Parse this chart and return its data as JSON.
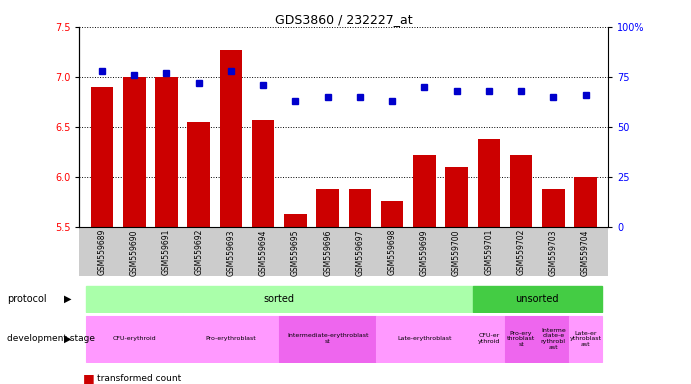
{
  "title": "GDS3860 / 232227_at",
  "samples": [
    "GSM559689",
    "GSM559690",
    "GSM559691",
    "GSM559692",
    "GSM559693",
    "GSM559694",
    "GSM559695",
    "GSM559696",
    "GSM559697",
    "GSM559698",
    "GSM559699",
    "GSM559700",
    "GSM559701",
    "GSM559702",
    "GSM559703",
    "GSM559704"
  ],
  "bar_values": [
    6.9,
    7.0,
    7.0,
    6.55,
    7.27,
    6.57,
    5.63,
    5.88,
    5.88,
    5.76,
    6.22,
    6.1,
    6.38,
    6.22,
    5.88,
    6.0
  ],
  "dot_values": [
    78,
    76,
    77,
    72,
    78,
    71,
    63,
    65,
    65,
    63,
    70,
    68,
    68,
    68,
    65,
    66
  ],
  "ylim_left": [
    5.5,
    7.5
  ],
  "ylim_right": [
    0,
    100
  ],
  "yticks_left": [
    5.5,
    6.0,
    6.5,
    7.0,
    7.5
  ],
  "yticks_right": [
    0,
    25,
    50,
    75,
    100
  ],
  "bar_color": "#CC0000",
  "dot_color": "#0000CC",
  "protocol_sorted_color": "#AAFFAA",
  "protocol_unsorted_color": "#44CC44",
  "dev_stages": [
    {
      "label": "CFU-erythroid",
      "start": 0,
      "end": 2,
      "color": "#FF99FF"
    },
    {
      "label": "Pro-erythroblast",
      "start": 3,
      "end": 5,
      "color": "#FF99FF"
    },
    {
      "label": "Intermediate-erythroblast\nst",
      "start": 6,
      "end": 8,
      "color": "#EE66EE"
    },
    {
      "label": "Late-erythroblast",
      "start": 9,
      "end": 11,
      "color": "#FF99FF"
    },
    {
      "label": "CFU-er\nythroid",
      "start": 12,
      "end": 12,
      "color": "#FF99FF"
    },
    {
      "label": "Pro-ery\nthroblast\nst",
      "start": 13,
      "end": 13,
      "color": "#EE66EE"
    },
    {
      "label": "Interme\ndiate-e\nrythrobl\nast",
      "start": 14,
      "end": 14,
      "color": "#EE66EE"
    },
    {
      "label": "Late-er\nythroblast\nast",
      "start": 15,
      "end": 15,
      "color": "#FF99FF"
    }
  ]
}
